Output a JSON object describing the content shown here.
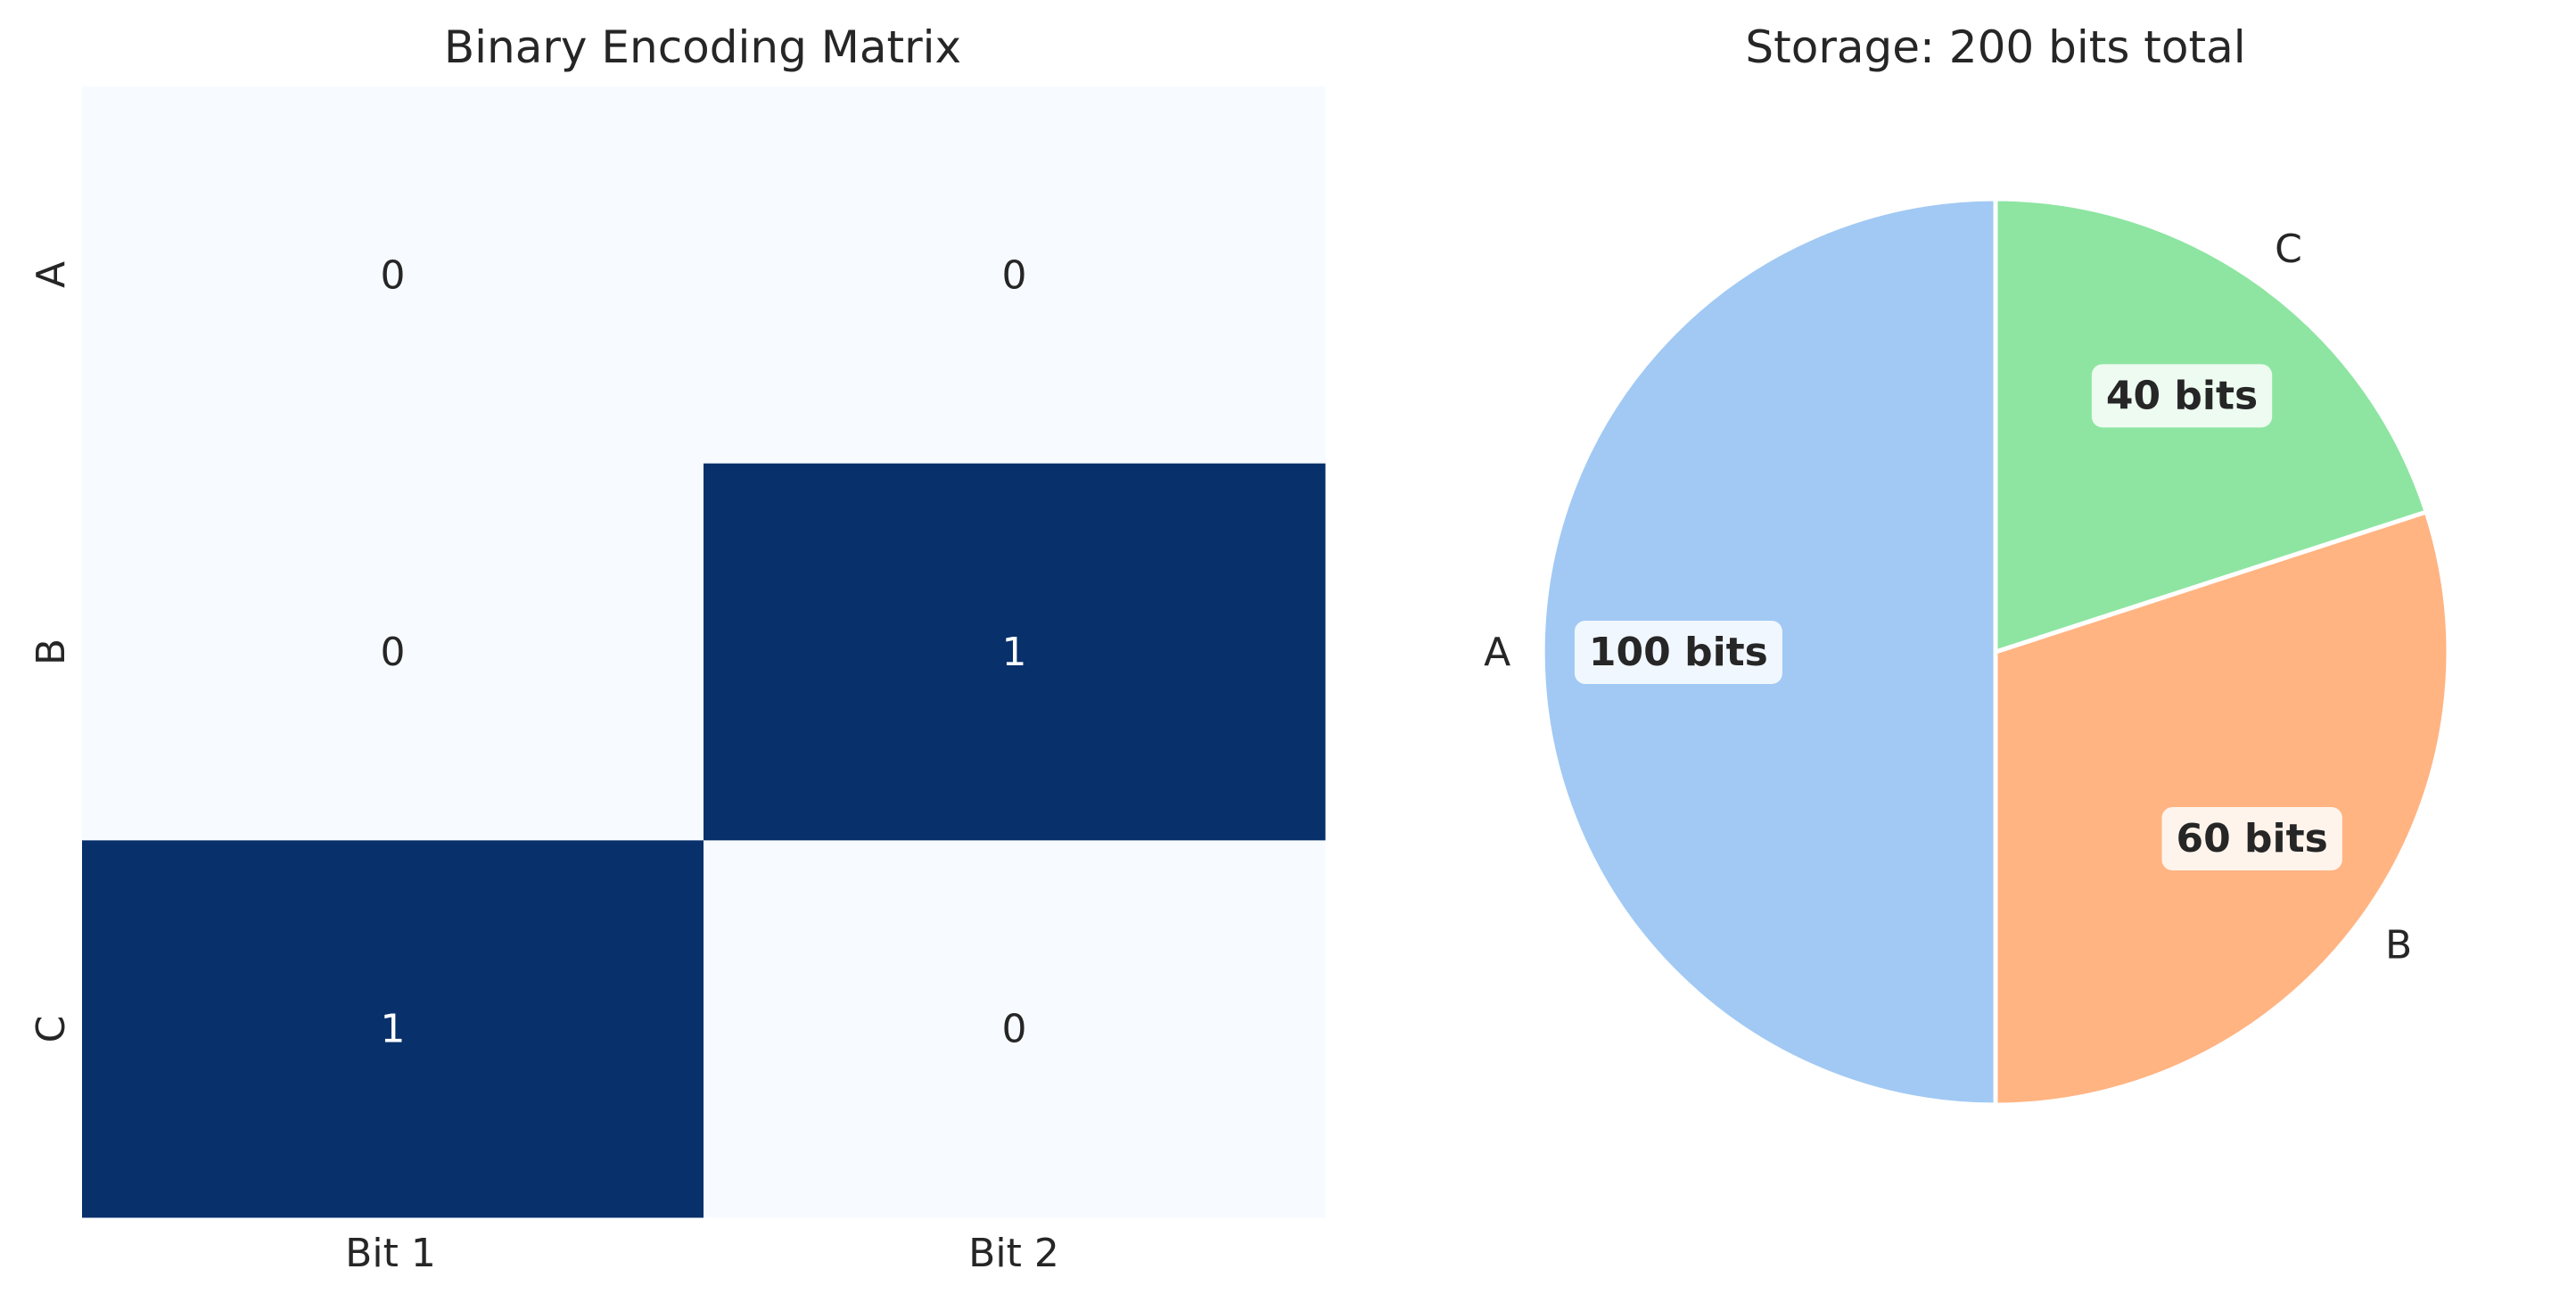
{
  "chart_data": [
    {
      "type": "heatmap",
      "title": "Binary Encoding Matrix",
      "x_categories": [
        "Bit 1",
        "Bit 2"
      ],
      "y_categories": [
        "A",
        "B",
        "C"
      ],
      "values": [
        [
          0,
          0
        ],
        [
          0,
          1
        ],
        [
          1,
          0
        ]
      ],
      "cell_labels": [
        [
          "0",
          "0"
        ],
        [
          "0",
          "1"
        ],
        [
          "1",
          "0"
        ]
      ],
      "colormap": "Blues",
      "color_low": "#f7fbff",
      "color_high": "#08306b",
      "colorbar": false,
      "grid": false
    },
    {
      "type": "pie",
      "title": "Storage: 200 bits total",
      "labels": [
        "A",
        "B",
        "C"
      ],
      "values": [
        100,
        60,
        40
      ],
      "value_labels": [
        "100 bits",
        "60 bits",
        "40 bits"
      ],
      "colors": [
        "#a1c9f4",
        "#ffb482",
        "#8de5a1"
      ],
      "start_angle_deg": 90,
      "direction": "counterclockwise"
    }
  ]
}
